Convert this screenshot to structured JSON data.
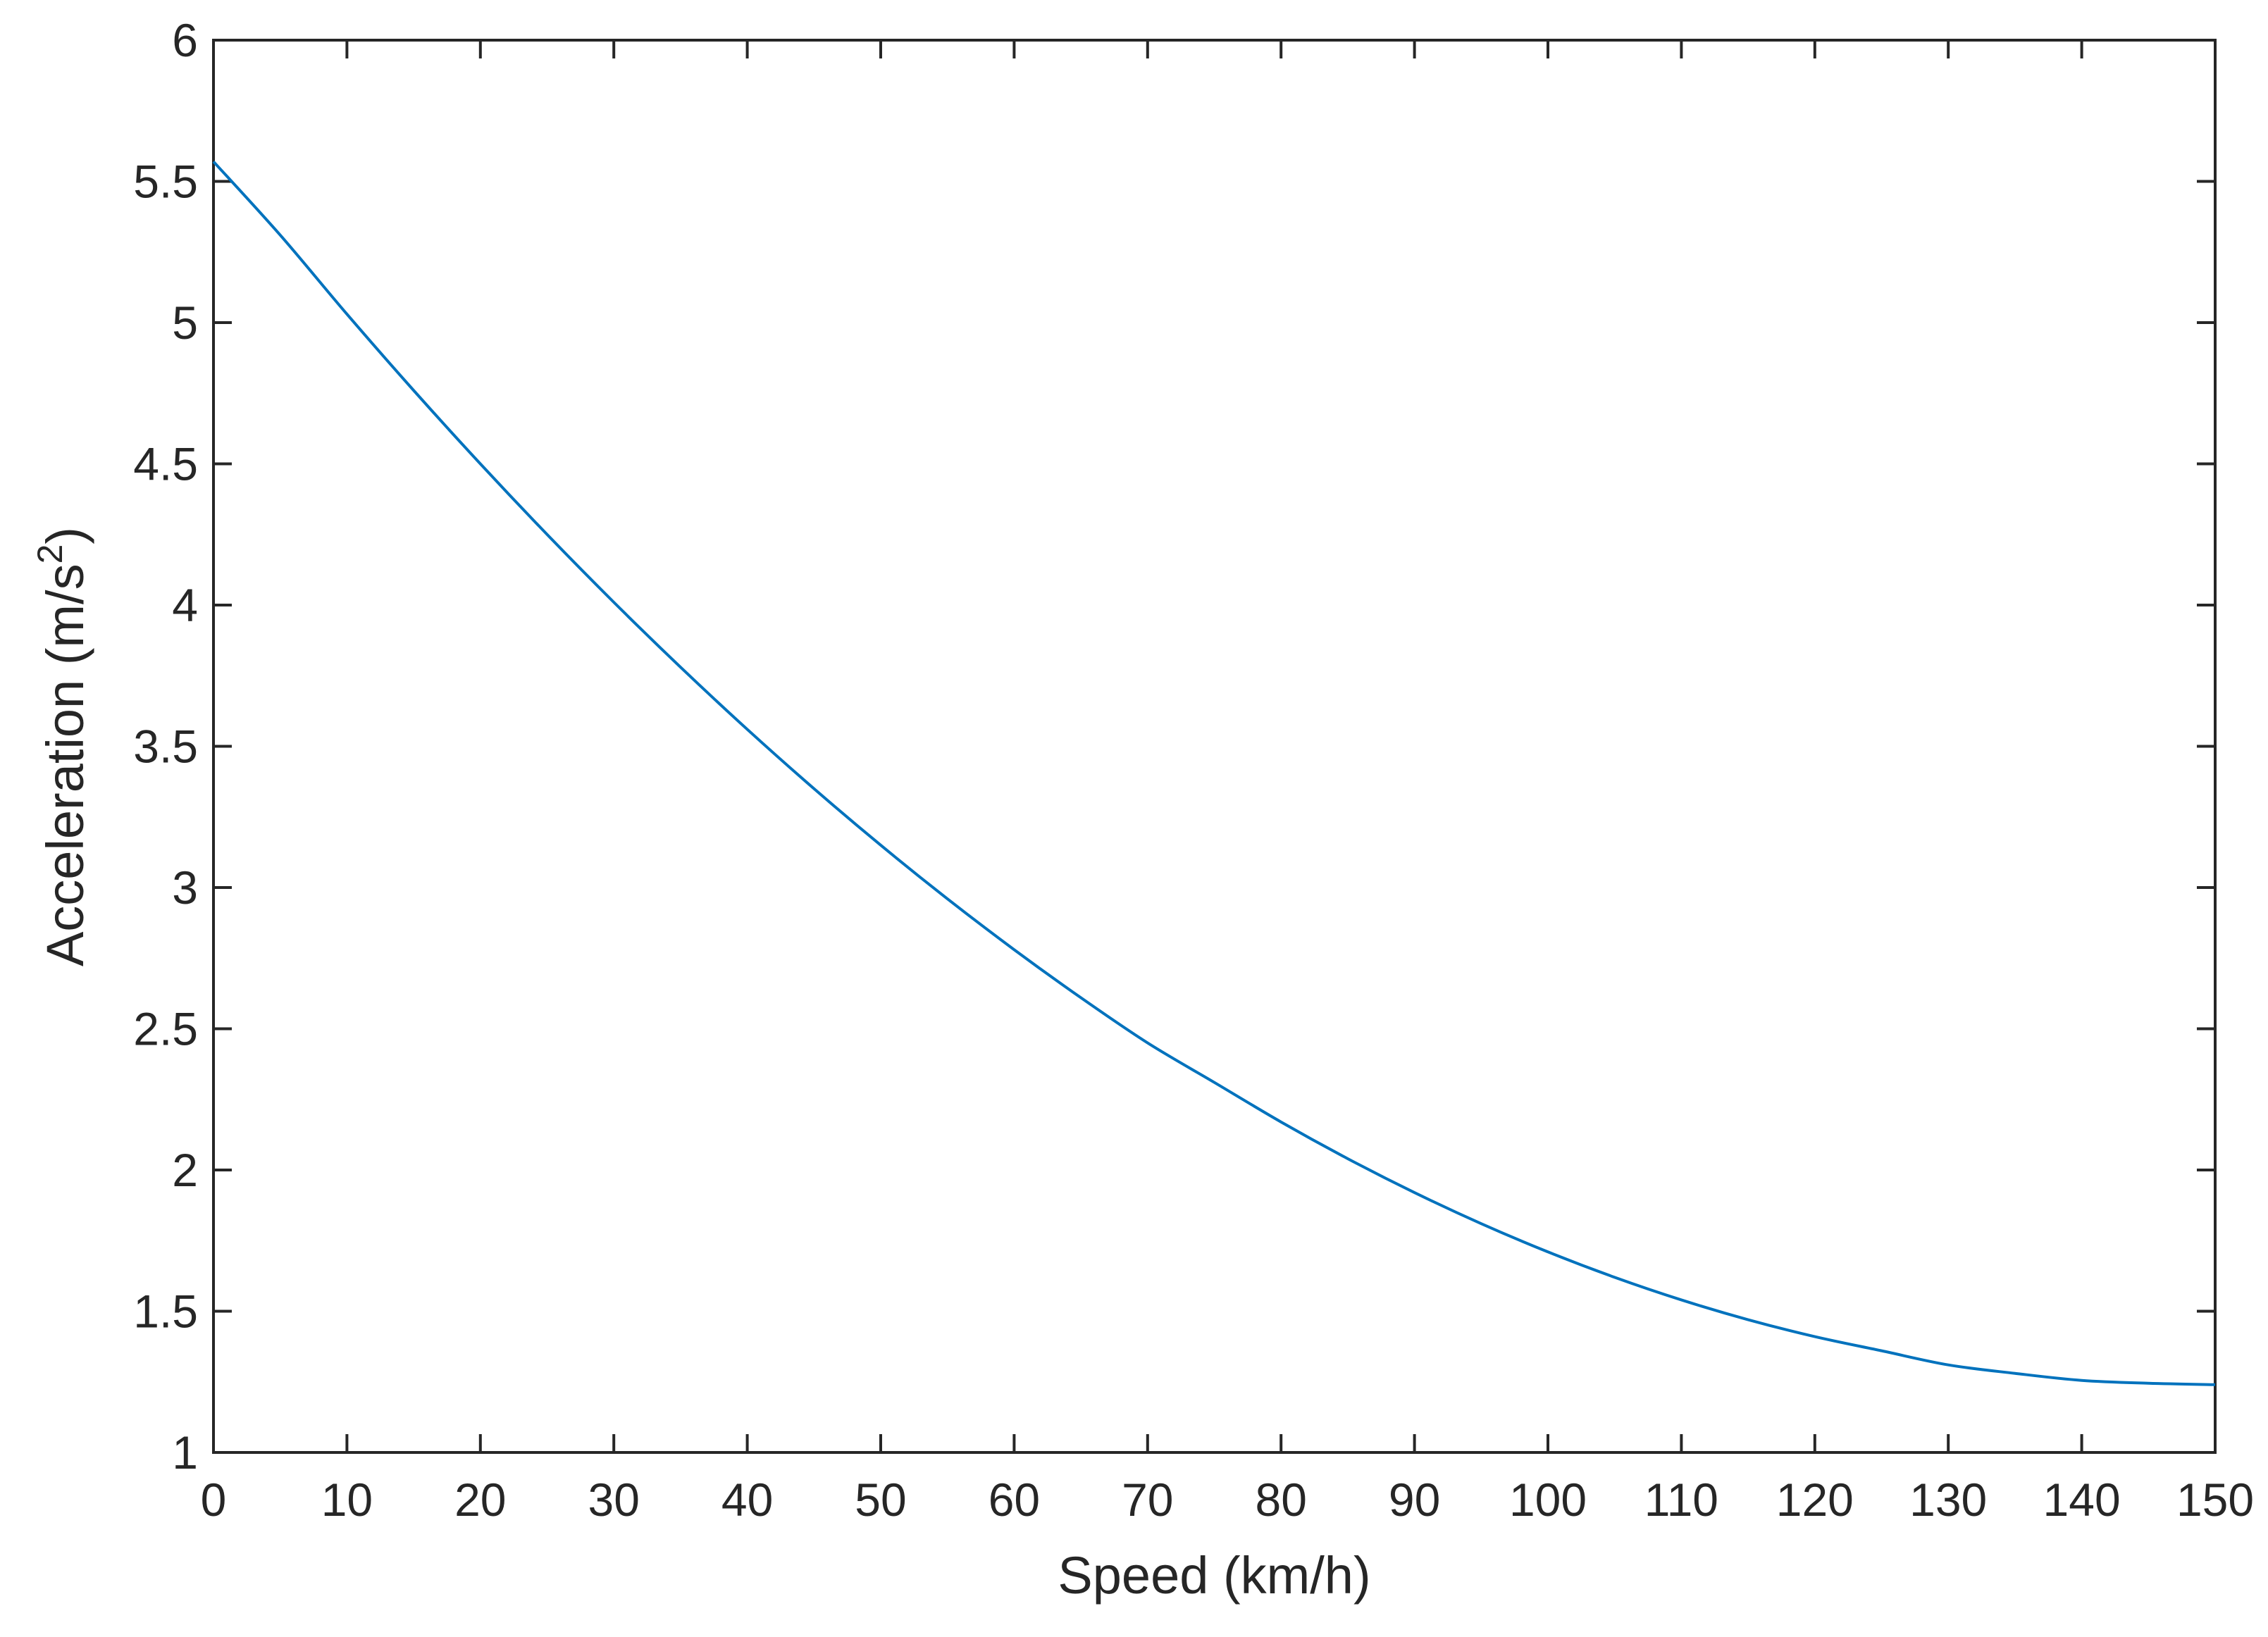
{
  "chart_data": {
    "type": "line",
    "title": "",
    "xlabel": "Speed (km/h)",
    "ylabel": {
      "prefix": "Acceleration  (m/s",
      "superscript": "2",
      "suffix": ")"
    },
    "xlim": [
      0,
      150
    ],
    "ylim": [
      1,
      6
    ],
    "xticks": [
      "0",
      "10",
      "20",
      "30",
      "40",
      "50",
      "60",
      "70",
      "80",
      "90",
      "100",
      "110",
      "120",
      "130",
      "140",
      "150"
    ],
    "yticks": [
      "1",
      "1.5",
      "2",
      "2.5",
      "3",
      "3.5",
      "4",
      "4.5",
      "5",
      "5.5",
      "6"
    ],
    "grid": false,
    "legend": "none",
    "series": [
      {
        "color": "#0072BD",
        "x": [
          0,
          5,
          10,
          15,
          20,
          25,
          30,
          35,
          40,
          45,
          50,
          55,
          60,
          65,
          70,
          75,
          80,
          85,
          90,
          95,
          100,
          105,
          110,
          115,
          120,
          125,
          130,
          135,
          140,
          145,
          150
        ],
        "y": [
          5.57,
          5.31,
          5.03,
          4.76,
          4.5,
          4.25,
          4.01,
          3.78,
          3.56,
          3.35,
          3.15,
          2.96,
          2.78,
          2.61,
          2.45,
          2.31,
          2.17,
          2.04,
          1.92,
          1.81,
          1.71,
          1.62,
          1.54,
          1.47,
          1.41,
          1.36,
          1.31,
          1.28,
          1.255,
          1.245,
          1.24
        ]
      }
    ]
  }
}
